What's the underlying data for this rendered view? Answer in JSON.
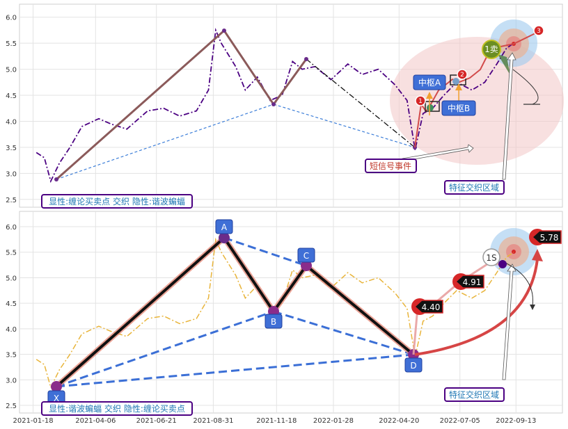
{
  "chart_data": [
    {
      "type": "line",
      "panel": "top",
      "ylim": [
        2.35,
        6.25
      ],
      "yticks": [
        "6.0",
        "5.5",
        "5.0",
        "4.5",
        "4.0",
        "3.5",
        "3.0",
        "2.5"
      ],
      "grid": true,
      "series": [
        {
          "style": "dash-dot",
          "color": "#4b0082",
          "x": [
            "2021-01-22",
            "2021-02-01",
            "2021-02-09",
            "2021-02-20",
            "2021-03-05",
            "2021-03-20",
            "2021-04-10",
            "2021-04-25",
            "2021-05-15",
            "2021-06-10",
            "2021-06-30",
            "2021-07-20",
            "2021-08-10",
            "2021-08-25",
            "2021-09-03",
            "2021-09-10",
            "2021-09-18",
            "2021-09-28",
            "2021-10-10",
            "2021-10-25",
            "2021-11-10",
            "2021-11-25",
            "2021-12-08",
            "2021-12-20",
            "2022-01-05",
            "2022-01-25",
            "2022-02-15",
            "2022-03-05",
            "2022-03-25",
            "2022-04-15",
            "2022-04-30",
            "2022-05-10",
            "2022-05-20",
            "2022-06-01",
            "2022-06-15",
            "2022-07-01",
            "2022-07-20",
            "2022-08-05",
            "2022-08-20",
            "2022-09-01",
            "2022-09-10"
          ],
          "y": [
            3.4,
            3.3,
            2.85,
            3.2,
            3.5,
            3.9,
            4.05,
            3.95,
            3.85,
            4.2,
            4.25,
            4.1,
            4.2,
            4.6,
            5.75,
            5.5,
            5.3,
            5.05,
            4.6,
            4.85,
            4.4,
            4.5,
            5.15,
            5.0,
            5.05,
            4.8,
            5.1,
            4.9,
            5.0,
            4.7,
            4.4,
            3.45,
            4.15,
            4.25,
            4.5,
            4.75,
            4.6,
            4.75,
            5.1,
            5.4,
            5.5
          ]
        }
      ],
      "zigzag": {
        "x": [
          "2021-02-09",
          "2021-09-03",
          "2021-11-09",
          "2021-12-11",
          "2022-05-10"
        ],
        "y": [
          2.85,
          5.8,
          4.35,
          5.22,
          3.48
        ]
      },
      "fit_line": {
        "x": [
          "2021-12-11",
          "2022-05-10"
        ],
        "y": [
          5.22,
          3.48
        ]
      },
      "labels": {
        "center_a": "中枢A",
        "center_b": "中枢B",
        "sell_1": "1卖",
        "event": "短信号事件",
        "zone": "特征交织区域",
        "caption": "显性:缠论买卖点 交织 隐性:谐波蝙蝠",
        "badge_1": "1",
        "badge_2": "2",
        "badge_3": "3"
      }
    },
    {
      "type": "line",
      "panel": "bottom",
      "ylim": [
        2.35,
        6.3
      ],
      "yticks": [
        "6.0",
        "5.5",
        "5.0",
        "4.5",
        "4.0",
        "3.5",
        "3.0",
        "2.5"
      ],
      "grid": true,
      "xticks": [
        "2021-01-18",
        "2021-04-06",
        "2021-06-21",
        "2021-08-31",
        "2021-11-18",
        "2022-01-28",
        "2022-04-20",
        "2022-07-05",
        "2022-09-13"
      ],
      "series": [
        {
          "style": "dash-dot",
          "color": "#e8b43a"
        }
      ],
      "harmonic_points": [
        {
          "name": "X",
          "x": "2021-02-09",
          "y": 2.85
        },
        {
          "name": "A",
          "x": "2021-09-03",
          "y": 5.8
        },
        {
          "name": "B",
          "x": "2021-11-09",
          "y": 4.35
        },
        {
          "name": "C",
          "x": "2021-12-11",
          "y": 5.22
        },
        {
          "name": "D",
          "x": "2022-05-10",
          "y": 3.48
        }
      ],
      "targets": [
        "4.40",
        "4.91",
        "5.78"
      ],
      "labels": {
        "sell_1s": "1S",
        "zone": "特征交织区域",
        "caption": "显性:谐波蝙蝠 交织 隐性:缠论买卖点"
      }
    }
  ]
}
